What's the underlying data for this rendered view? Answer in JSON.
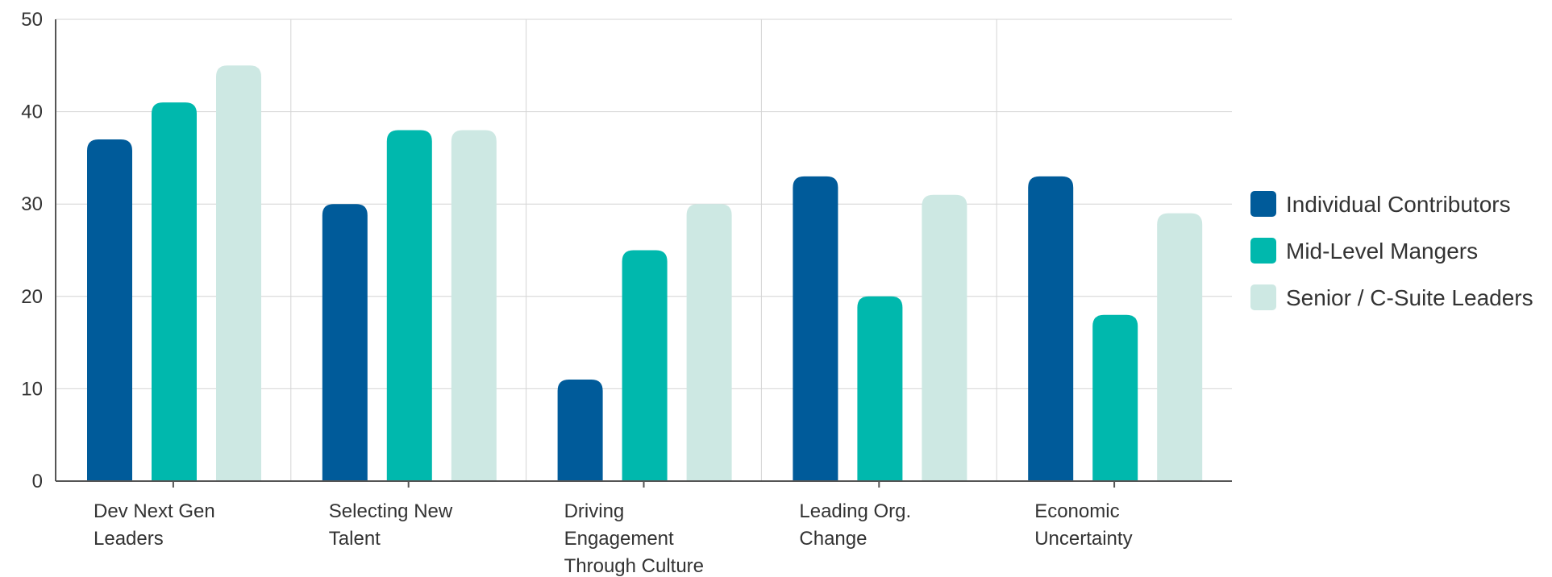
{
  "chart_data": {
    "type": "bar",
    "title": "",
    "xlabel": "",
    "ylabel": "",
    "ylim": [
      0,
      50
    ],
    "yticks": [
      0,
      10,
      20,
      30,
      40,
      50
    ],
    "grid": true,
    "legend_position": "right",
    "categories": [
      [
        "Dev Next Gen",
        "Leaders"
      ],
      [
        "Selecting New",
        "Talent"
      ],
      [
        "Driving",
        "Engagement",
        "Through Culture"
      ],
      [
        "Leading Org.",
        "Change"
      ],
      [
        "Economic",
        "Uncertainty"
      ]
    ],
    "series": [
      {
        "name": "Individual Contributors",
        "color": "#005b9a",
        "values": [
          37,
          30,
          11,
          33,
          33
        ]
      },
      {
        "name": "Mid-Level Mangers",
        "color": "#00b8ad",
        "values": [
          41,
          38,
          25,
          20,
          18
        ]
      },
      {
        "name": "Senior / C-Suite Leaders",
        "color": "#cde8e3",
        "values": [
          45,
          38,
          30,
          31,
          29
        ]
      }
    ]
  }
}
